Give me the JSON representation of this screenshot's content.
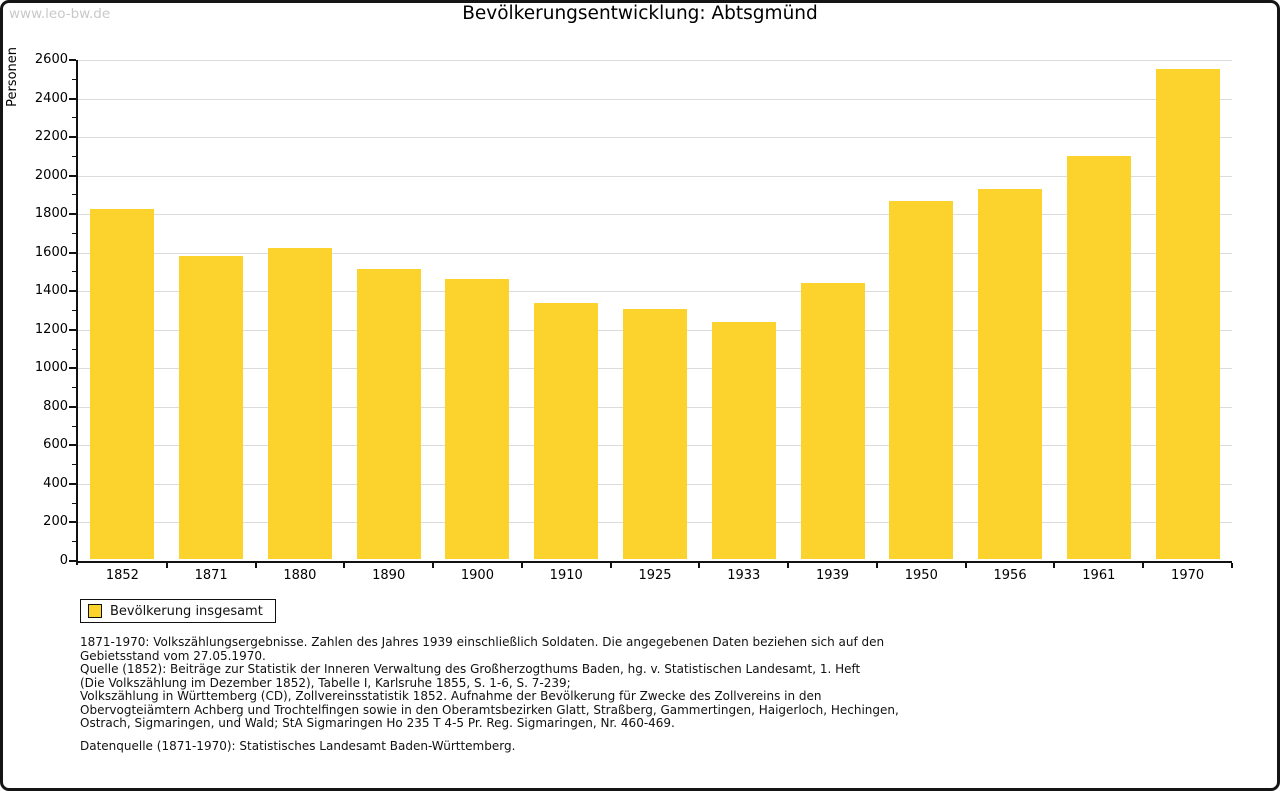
{
  "watermark": "www.leo-bw.de",
  "title": "Bevölkerungsentwicklung: Abtsgmünd",
  "chart_data": {
    "type": "bar",
    "title": "Bevölkerungsentwicklung: Abtsgmünd",
    "xlabel": "",
    "ylabel": "Personen",
    "categories": [
      "1852",
      "1871",
      "1880",
      "1890",
      "1900",
      "1910",
      "1925",
      "1933",
      "1939",
      "1950",
      "1956",
      "1961",
      "1970"
    ],
    "series": [
      {
        "name": "Bevölkerung insgesamt",
        "values": [
          1815,
          1575,
          1615,
          1505,
          1455,
          1330,
          1300,
          1230,
          1435,
          1860,
          1920,
          2090,
          2545
        ]
      }
    ],
    "ylim": [
      0,
      2600
    ],
    "ytick_step": 200,
    "ytick_minor_step": 100,
    "grid": true,
    "legend_position": "bottom-left",
    "bar_color": "#FCD32D",
    "grid_color": "#DBDBDB"
  },
  "legend": {
    "label": "Bevölkerung insgesamt",
    "swatch_color": "#FCD32D"
  },
  "footnotes": [
    "1871-1970: Volkszählungsergebnisse. Zahlen des Jahres 1939 einschließlich Soldaten. Die angegebenen Daten beziehen sich auf den",
    "Gebietsstand vom 27.05.1970.",
    "Quelle (1852): Beiträge zur Statistik der Inneren Verwaltung des Großherzogthums Baden, hg. v. Statistischen Landesamt, 1. Heft",
    "(Die Volkszählung im Dezember 1852), Tabelle I, Karlsruhe 1855, S. 1-6, S. 7-239;",
    "Volkszählung in Württemberg (CD), Zollvereinsstatistik 1852. Aufnahme der Bevölkerung für Zwecke des Zollvereins in den",
    "Obervogteiämtern Achberg und Trochtelfingen sowie in den Oberamtsbezirken Glatt, Straßberg, Gammertingen, Haigerloch, Hechingen,",
    "Ostrach, Sigmaringen, und Wald; StA Sigmaringen Ho 235 T 4-5 Pr. Reg. Sigmaringen, Nr. 460-469."
  ],
  "source_line": "Datenquelle (1871-1970): Statistisches Landesamt Baden-Württemberg."
}
